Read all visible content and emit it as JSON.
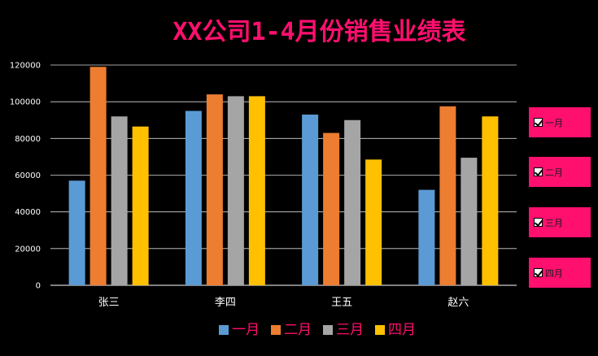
{
  "chart_data": {
    "type": "bar",
    "title": "XX公司1-4月份销售业绩表",
    "categories": [
      "张三",
      "李四",
      "王五",
      "赵六"
    ],
    "series": [
      {
        "name": "一月",
        "color": "#5B9BD5",
        "values": [
          57000,
          95000,
          93000,
          52000
        ]
      },
      {
        "name": "二月",
        "color": "#ED7D31",
        "values": [
          119000,
          104000,
          83000,
          97500
        ]
      },
      {
        "name": "三月",
        "color": "#A5A5A5",
        "values": [
          92000,
          103000,
          90000,
          69500
        ]
      },
      {
        "name": "四月",
        "color": "#FFC000",
        "values": [
          86500,
          103000,
          68500,
          92000
        ]
      }
    ],
    "ylim": [
      0,
      120000
    ],
    "yticks": [
      0,
      20000,
      40000,
      60000,
      80000,
      100000,
      120000
    ],
    "ytick_labels": [
      "0",
      "20000",
      "40000",
      "60000",
      "80000",
      "100000",
      "120000"
    ],
    "grid": true,
    "legend": "bottom",
    "xlabel": "",
    "ylabel": ""
  },
  "filters": [
    {
      "label": "一月",
      "checked": true
    },
    {
      "label": "二月",
      "checked": true
    },
    {
      "label": "三月",
      "checked": true
    },
    {
      "label": "四月",
      "checked": true
    }
  ],
  "colors": {
    "background": "#000000",
    "accent": "#FF0F6E",
    "gridline": "#FFFFFF",
    "text": "#FFFFFF"
  }
}
